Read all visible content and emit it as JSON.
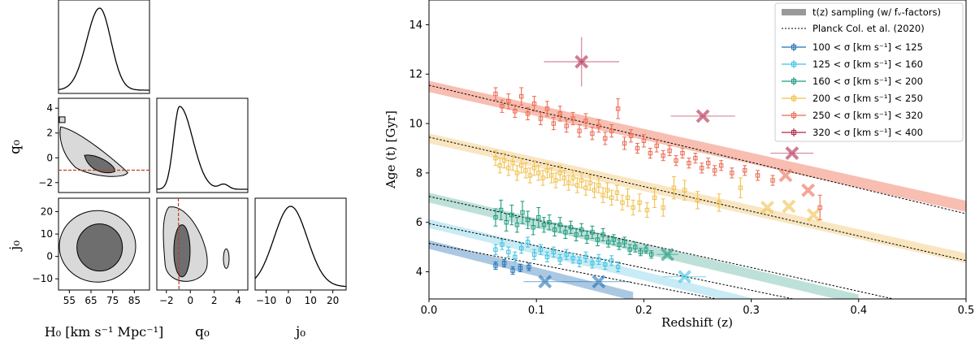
{
  "chart_data": [
    {
      "type": "corner",
      "parameters": [
        "H0",
        "q0",
        "j0"
      ],
      "param_labels": {
        "H0": "H₀ [km s⁻¹ Mpc⁻¹]",
        "q0": "q₀",
        "j0": "j₀"
      },
      "ranges": {
        "H0": [
          50,
          92
        ],
        "q0": [
          -2.8,
          4.8
        ],
        "j0": [
          -15,
          26
        ]
      },
      "ticks": {
        "H0": [
          "55",
          "65",
          "75",
          "85"
        ],
        "q0_x": [
          "−2",
          "0",
          "2",
          "4"
        ],
        "q0_y": [
          "−2",
          "0",
          "2",
          "4"
        ],
        "j0_x": [
          "−10",
          "0",
          "10",
          "20"
        ],
        "j0_y": [
          "−10",
          "0",
          "10",
          "20"
        ]
      },
      "tick_values": {
        "H0": [
          55,
          65,
          75,
          85
        ],
        "q0": [
          -2,
          0,
          2,
          4
        ],
        "j0": [
          -10,
          0,
          10,
          20
        ]
      },
      "reference_q0": -1,
      "marginals": {
        "H0": {
          "mode": 69,
          "sigma_left": 6,
          "sigma_right": 5.2
        },
        "q0": {
          "mode": -0.9,
          "sigma_left": 0.5,
          "sigma_right": 1.1
        },
        "j0": {
          "mode": 1,
          "sigma": 7.5
        }
      },
      "colors": {
        "outer_contour": "#d9d9d9",
        "inner_contour": "#6e6e6e",
        "reference_line": "#c0392b"
      }
    },
    {
      "type": "scatter",
      "xlabel": "Redshift (z)",
      "ylabel": "Age (t) [Gyr]",
      "xlim": [
        0.0,
        0.5
      ],
      "ylim": [
        2.9,
        15.0
      ],
      "xticks": [
        "0.0",
        "0.1",
        "0.2",
        "0.3",
        "0.4",
        "0.5"
      ],
      "yticks": [
        "4",
        "6",
        "8",
        "10",
        "12",
        "14"
      ],
      "xtick_values": [
        0.0,
        0.1,
        0.2,
        0.3,
        0.4,
        0.5
      ],
      "ytick_values": [
        4,
        6,
        8,
        10,
        12,
        14
      ],
      "legend": {
        "placement": "top-right",
        "band_label": "t(z) sampling (w/ fᵥ-factors)",
        "line_label": "Planck Col. et al. (2020)"
      },
      "planck_lines": [
        {
          "t0": 11.55,
          "slope": -10.4
        },
        {
          "t0": 9.45,
          "slope": -10.0
        },
        {
          "t0": 7.05,
          "slope": -9.6
        },
        {
          "t0": 5.95,
          "slope": -9.0
        },
        {
          "t0": 5.15,
          "slope": -8.4
        }
      ],
      "bands": [
        {
          "t0": 11.5,
          "slope": -9.7,
          "width": 0.45,
          "end_z": 0.5,
          "color": "#f4a897"
        },
        {
          "t0": 9.4,
          "slope": -9.7,
          "width": 0.4,
          "end_z": 0.5,
          "color": "#f7deac"
        },
        {
          "t0": 7.0,
          "slope": -10.3,
          "width": 0.4,
          "end_z": 0.4,
          "color": "#a7d7cb"
        },
        {
          "t0": 5.95,
          "slope": -10.6,
          "width": 0.35,
          "end_z": 0.3,
          "color": "#b6e4f2"
        },
        {
          "t0": 5.1,
          "slope": -11.0,
          "width": 0.35,
          "end_z": 0.19,
          "color": "#8fb6da"
        }
      ],
      "series": [
        {
          "name": "100 < σ [km s⁻¹] < 125",
          "color": "#1f6fb4",
          "points": [
            [
              0.062,
              4.25,
              0.3
            ],
            [
              0.07,
              4.35,
              0.3
            ],
            [
              0.078,
              4.05,
              0.3
            ],
            [
              0.085,
              4.15,
              0.3
            ],
            [
              0.093,
              4.2,
              0.3
            ]
          ],
          "stacked": [
            {
              "z": 0.108,
              "t": 3.6,
              "zerr": 0.02,
              "terr": 0.0
            },
            {
              "z": 0.158,
              "t": 3.6,
              "zerr": 0.03,
              "terr": 0.0
            }
          ]
        },
        {
          "name": "125 < σ [km s⁻¹] < 160",
          "color": "#3fc2e2",
          "points": [
            [
              0.062,
              4.9,
              0.4
            ],
            [
              0.068,
              5.1,
              0.4
            ],
            [
              0.074,
              4.8,
              0.4
            ],
            [
              0.08,
              4.6,
              0.4
            ],
            [
              0.086,
              4.95,
              0.4
            ],
            [
              0.092,
              5.2,
              0.4
            ],
            [
              0.098,
              4.7,
              0.4
            ],
            [
              0.104,
              4.9,
              0.4
            ],
            [
              0.11,
              4.6,
              0.4
            ],
            [
              0.116,
              4.8,
              0.4
            ],
            [
              0.122,
              4.5,
              0.4
            ],
            [
              0.128,
              4.7,
              0.4
            ],
            [
              0.134,
              4.55,
              0.4
            ],
            [
              0.14,
              4.4,
              0.4
            ],
            [
              0.146,
              4.6,
              0.4
            ],
            [
              0.152,
              4.35,
              0.4
            ],
            [
              0.158,
              4.5,
              0.4
            ],
            [
              0.164,
              4.3,
              0.4
            ],
            [
              0.17,
              4.45,
              0.4
            ],
            [
              0.176,
              4.2,
              0.4
            ]
          ],
          "stacked": [
            {
              "z": 0.238,
              "t": 3.8,
              "zerr": 0.02,
              "terr": 0.0
            }
          ]
        },
        {
          "name": "160 < σ [km s⁻¹] < 200",
          "color": "#1e9a80",
          "points": [
            [
              0.062,
              6.2,
              0.7
            ],
            [
              0.067,
              6.5,
              0.8
            ],
            [
              0.072,
              6.0,
              0.7
            ],
            [
              0.077,
              6.3,
              0.8
            ],
            [
              0.082,
              5.9,
              0.6
            ],
            [
              0.087,
              6.4,
              0.9
            ],
            [
              0.092,
              6.1,
              0.7
            ],
            [
              0.097,
              5.8,
              0.6
            ],
            [
              0.102,
              6.2,
              0.8
            ],
            [
              0.107,
              5.9,
              0.6
            ],
            [
              0.112,
              6.0,
              0.6
            ],
            [
              0.117,
              5.7,
              0.5
            ],
            [
              0.122,
              5.9,
              0.6
            ],
            [
              0.127,
              5.6,
              0.5
            ],
            [
              0.132,
              5.8,
              0.5
            ],
            [
              0.137,
              5.5,
              0.5
            ],
            [
              0.142,
              5.7,
              0.5
            ],
            [
              0.147,
              5.4,
              0.5
            ],
            [
              0.152,
              5.6,
              0.5
            ],
            [
              0.157,
              5.3,
              0.5
            ],
            [
              0.162,
              5.5,
              0.5
            ],
            [
              0.167,
              5.2,
              0.4
            ],
            [
              0.172,
              5.3,
              0.4
            ],
            [
              0.177,
              5.1,
              0.4
            ],
            [
              0.182,
              5.2,
              0.4
            ],
            [
              0.187,
              4.9,
              0.4
            ],
            [
              0.192,
              5.0,
              0.4
            ],
            [
              0.197,
              4.8,
              0.3
            ],
            [
              0.202,
              4.9,
              0.3
            ],
            [
              0.207,
              4.7,
              0.3
            ]
          ],
          "stacked": [
            {
              "z": 0.222,
              "t": 4.7,
              "zerr": 0.01,
              "terr": 0.0
            }
          ]
        },
        {
          "name": "200 < σ [km s⁻¹] < 250",
          "color": "#f0c04c",
          "points": [
            [
              0.062,
              8.6,
              0.6
            ],
            [
              0.066,
              8.3,
              0.6
            ],
            [
              0.07,
              8.5,
              0.6
            ],
            [
              0.074,
              8.2,
              0.6
            ],
            [
              0.078,
              8.4,
              0.6
            ],
            [
              0.082,
              8.0,
              0.6
            ],
            [
              0.086,
              8.3,
              0.6
            ],
            [
              0.09,
              8.1,
              0.6
            ],
            [
              0.094,
              7.9,
              0.6
            ],
            [
              0.098,
              8.2,
              0.6
            ],
            [
              0.102,
              8.0,
              0.6
            ],
            [
              0.106,
              7.8,
              0.6
            ],
            [
              0.11,
              8.1,
              0.6
            ],
            [
              0.114,
              7.9,
              0.6
            ],
            [
              0.118,
              7.7,
              0.6
            ],
            [
              0.122,
              8.0,
              0.6
            ],
            [
              0.126,
              7.8,
              0.6
            ],
            [
              0.13,
              7.6,
              0.6
            ],
            [
              0.134,
              7.8,
              0.6
            ],
            [
              0.138,
              7.5,
              0.6
            ],
            [
              0.142,
              7.7,
              0.6
            ],
            [
              0.146,
              7.4,
              0.6
            ],
            [
              0.15,
              7.6,
              0.6
            ],
            [
              0.154,
              7.3,
              0.6
            ],
            [
              0.158,
              7.5,
              0.6
            ],
            [
              0.162,
              7.1,
              0.6
            ],
            [
              0.166,
              7.3,
              0.6
            ],
            [
              0.17,
              7.0,
              0.6
            ],
            [
              0.175,
              7.2,
              0.6
            ],
            [
              0.18,
              6.8,
              0.6
            ],
            [
              0.185,
              7.0,
              0.7
            ],
            [
              0.19,
              6.6,
              0.6
            ],
            [
              0.196,
              6.8,
              0.7
            ],
            [
              0.203,
              6.5,
              0.6
            ],
            [
              0.21,
              7.0,
              0.8
            ],
            [
              0.218,
              6.6,
              0.7
            ],
            [
              0.228,
              7.4,
              0.9
            ],
            [
              0.238,
              7.3,
              0.8
            ],
            [
              0.25,
              6.9,
              0.7
            ],
            [
              0.27,
              6.8,
              0.7
            ],
            [
              0.29,
              7.4,
              0.8
            ]
          ],
          "stacked": [
            {
              "z": 0.315,
              "t": 6.6,
              "zerr": 0.0,
              "terr": 0.0
            },
            {
              "z": 0.335,
              "t": 6.65,
              "zerr": 0.0,
              "terr": 0.0
            },
            {
              "z": 0.358,
              "t": 6.3,
              "zerr": 0.0,
              "terr": 0.0
            }
          ]
        },
        {
          "name": "250 < σ [km s⁻¹] < 320",
          "color": "#ec6a52",
          "points": [
            [
              0.062,
              11.2,
              0.5
            ],
            [
              0.068,
              10.7,
              0.5
            ],
            [
              0.074,
              10.9,
              0.6
            ],
            [
              0.08,
              10.5,
              0.5
            ],
            [
              0.086,
              11.1,
              0.7
            ],
            [
              0.092,
              10.4,
              0.5
            ],
            [
              0.098,
              10.8,
              0.6
            ],
            [
              0.104,
              10.2,
              0.5
            ],
            [
              0.11,
              10.6,
              0.6
            ],
            [
              0.116,
              10.0,
              0.5
            ],
            [
              0.122,
              10.4,
              0.6
            ],
            [
              0.128,
              9.9,
              0.5
            ],
            [
              0.134,
              10.2,
              0.5
            ],
            [
              0.14,
              9.7,
              0.5
            ],
            [
              0.146,
              10.1,
              0.6
            ],
            [
              0.152,
              9.6,
              0.5
            ],
            [
              0.158,
              9.9,
              0.5
            ],
            [
              0.164,
              9.4,
              0.5
            ],
            [
              0.17,
              9.7,
              0.5
            ],
            [
              0.176,
              10.6,
              0.8
            ],
            [
              0.182,
              9.2,
              0.5
            ],
            [
              0.188,
              9.5,
              0.5
            ],
            [
              0.194,
              9.0,
              0.4
            ],
            [
              0.2,
              9.3,
              0.5
            ],
            [
              0.206,
              8.8,
              0.4
            ],
            [
              0.212,
              9.1,
              0.5
            ],
            [
              0.218,
              8.7,
              0.4
            ],
            [
              0.224,
              8.9,
              0.4
            ],
            [
              0.23,
              8.5,
              0.4
            ],
            [
              0.236,
              8.8,
              0.4
            ],
            [
              0.242,
              8.4,
              0.4
            ],
            [
              0.248,
              8.6,
              0.4
            ],
            [
              0.254,
              8.2,
              0.4
            ],
            [
              0.26,
              8.4,
              0.4
            ],
            [
              0.266,
              8.1,
              0.4
            ],
            [
              0.272,
              8.3,
              0.4
            ],
            [
              0.282,
              8.0,
              0.4
            ],
            [
              0.294,
              8.1,
              0.4
            ],
            [
              0.306,
              7.9,
              0.4
            ],
            [
              0.32,
              7.7,
              0.4
            ],
            [
              0.364,
              6.6,
              1.0
            ]
          ],
          "stacked": [
            {
              "z": 0.332,
              "t": 7.9,
              "zerr": 0.0,
              "terr": 0.0
            },
            {
              "z": 0.353,
              "t": 7.3,
              "zerr": 0.0,
              "terr": 0.0
            }
          ]
        },
        {
          "name": "320 < σ [km s⁻¹] < 400",
          "color": "#b0254b",
          "points": [],
          "stacked": [
            {
              "z": 0.142,
              "t": 12.5,
              "zerr": 0.035,
              "terr": 1.0
            },
            {
              "z": 0.255,
              "t": 10.3,
              "zerr": 0.03,
              "terr": 0.0
            },
            {
              "z": 0.338,
              "t": 8.8,
              "zerr": 0.02,
              "terr": 0.0
            }
          ]
        }
      ]
    }
  ]
}
